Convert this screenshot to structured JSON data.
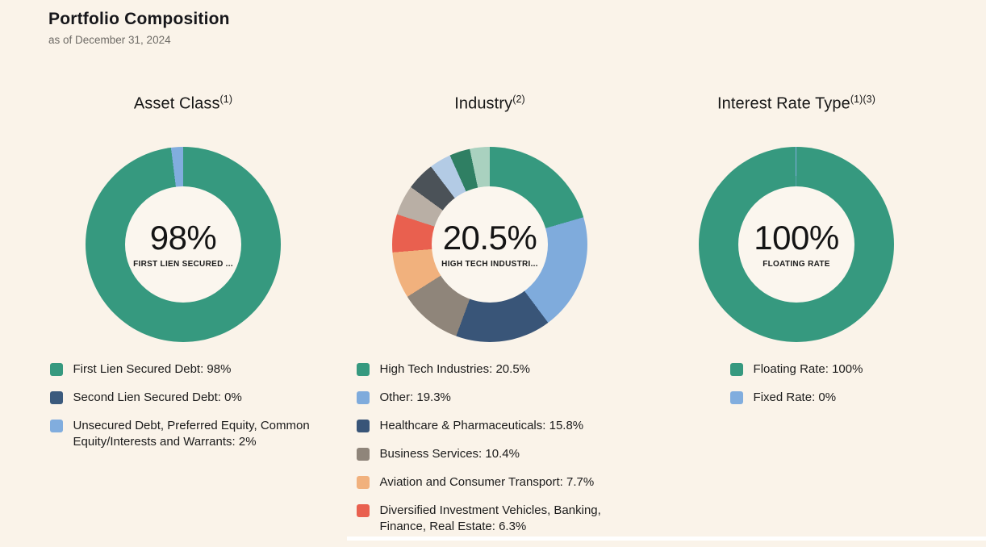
{
  "page": {
    "title": "Portfolio Composition",
    "subtitle": "as of December 31, 2024",
    "background_color": "#FAF3E9"
  },
  "chart_data": [
    {
      "type": "pie",
      "variant": "donut",
      "title": "Asset Class",
      "superscript": "(1)",
      "center": {
        "value": "98%",
        "label": "FIRST LIEN SECURED ..."
      },
      "legend_position": "bottom",
      "segments": [
        {
          "name": "First Lien Secured Debt",
          "pct": 98,
          "color": "#36997F",
          "legend_text": "First Lien Secured Debt: 98%",
          "show_in_legend": true
        },
        {
          "name": "Second Lien Secured Debt",
          "pct": 0,
          "color": "#3B5A7D",
          "legend_text": "Second Lien Secured Debt: 0%",
          "show_in_legend": true
        },
        {
          "name": "Unsecured Debt, Preferred Equity, Common Equity/Interests and Warrants",
          "pct": 2,
          "color": "#81ADDE",
          "legend_text": "Unsecured Debt, Preferred Equity, Common Equity/Interests and Warrants: 2%",
          "show_in_legend": true
        }
      ]
    },
    {
      "type": "pie",
      "variant": "donut",
      "title": "Industry",
      "superscript": "(2)",
      "center": {
        "value": "20.5%",
        "label": "HIGH TECH INDUSTRI..."
      },
      "legend_position": "bottom",
      "segments": [
        {
          "name": "High Tech Industries",
          "pct": 20.5,
          "color": "#36997F",
          "legend_text": "High Tech Industries: 20.5%",
          "show_in_legend": true
        },
        {
          "name": "Other",
          "pct": 19.3,
          "color": "#7FABDC",
          "legend_text": "Other: 19.3%",
          "show_in_legend": true
        },
        {
          "name": "Healthcare & Pharmaceuticals",
          "pct": 15.8,
          "color": "#395578",
          "legend_text": "Healthcare & Pharmaceuticals: 15.8%",
          "show_in_legend": true
        },
        {
          "name": "Business Services",
          "pct": 10.4,
          "color": "#8F857A",
          "legend_text": "Business Services: 10.4%",
          "show_in_legend": true
        },
        {
          "name": "Aviation and Consumer Transport",
          "pct": 7.7,
          "color": "#F1B17D",
          "legend_text": "Aviation and Consumer Transport: 7.7%",
          "show_in_legend": true
        },
        {
          "name": "Diversified Investment Vehicles, Banking, Finance, Real Estate",
          "pct": 6.3,
          "color": "#E9604F",
          "legend_text": "Diversified Investment Vehicles, Banking, Finance, Real Estate: 6.3%",
          "show_in_legend": true
        },
        {
          "name": "unlabeled-segment-1",
          "pct": 5.0,
          "estimated": true,
          "color": "#B9AFA5",
          "show_in_legend": false
        },
        {
          "name": "unlabeled-segment-2",
          "pct": 4.7,
          "estimated": true,
          "color": "#4B5258",
          "show_in_legend": false
        },
        {
          "name": "unlabeled-segment-3",
          "pct": 3.6,
          "estimated": true,
          "color": "#B3CBE5",
          "show_in_legend": false
        },
        {
          "name": "unlabeled-segment-4",
          "pct": 3.4,
          "estimated": true,
          "color": "#2F7F63",
          "show_in_legend": false
        },
        {
          "name": "unlabeled-segment-5",
          "pct": 3.3,
          "estimated": true,
          "color": "#A9D1BF",
          "show_in_legend": false
        }
      ]
    },
    {
      "type": "pie",
      "variant": "donut",
      "title": "Interest Rate Type",
      "superscript": "(1)(3)",
      "center": {
        "value": "100%",
        "label": "FLOATING RATE"
      },
      "legend_position": "bottom",
      "segments": [
        {
          "name": "Floating Rate",
          "pct": 100,
          "sweep": 99.86,
          "color": "#36997F",
          "legend_text": "Floating Rate: 100%",
          "show_in_legend": true
        },
        {
          "name": "Fixed Rate",
          "pct": 0,
          "sweep": 0.14,
          "color": "#81ADDE",
          "legend_text": "Fixed Rate: 0%",
          "show_in_legend": true
        }
      ]
    }
  ]
}
